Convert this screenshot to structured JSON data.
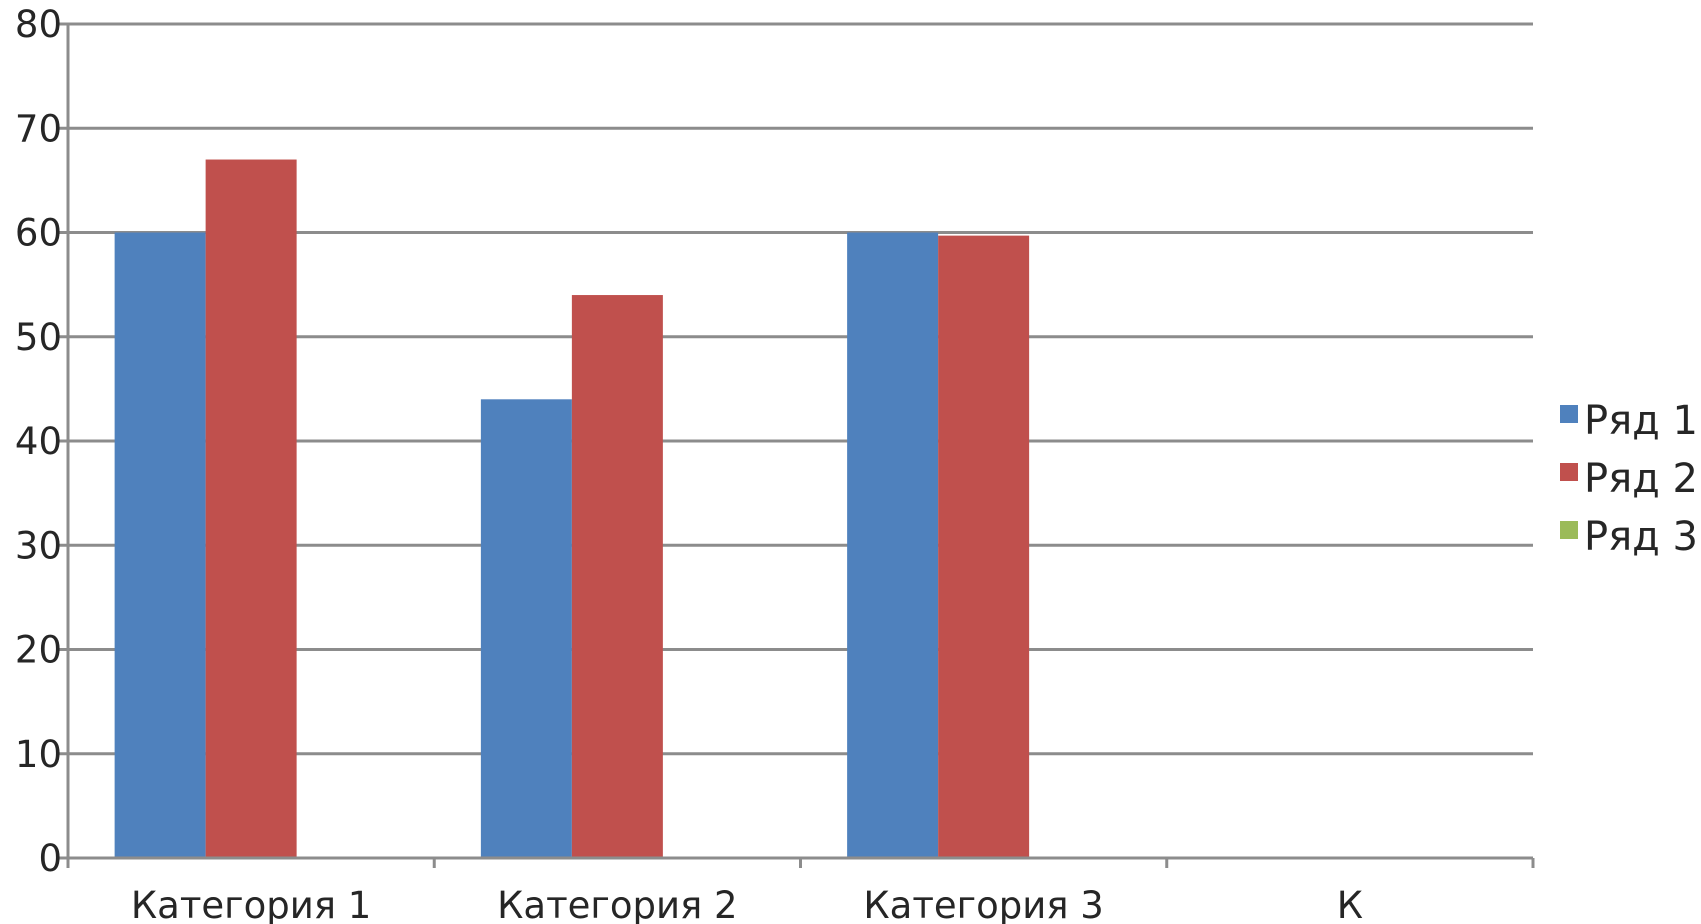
{
  "chart_data": {
    "type": "bar",
    "categories": [
      "Категория 1",
      "Категория 2",
      "Категория 3",
      "К"
    ],
    "series": [
      {
        "name": "Ряд 1",
        "color": "#4F81BD",
        "values": [
          60,
          44,
          60,
          null
        ]
      },
      {
        "name": "Ряд 2",
        "color": "#C0504D",
        "values": [
          67,
          54,
          59.7,
          null
        ]
      },
      {
        "name": "Ряд 3",
        "color": "#9BBB59",
        "values": [
          null,
          null,
          null,
          null
        ]
      }
    ],
    "title": "",
    "xlabel": "",
    "ylabel": "",
    "ylim": [
      0,
      80
    ],
    "yticks": [
      0,
      10,
      20,
      30,
      40,
      50,
      60,
      70,
      80
    ],
    "grid": true,
    "legend": "right"
  }
}
